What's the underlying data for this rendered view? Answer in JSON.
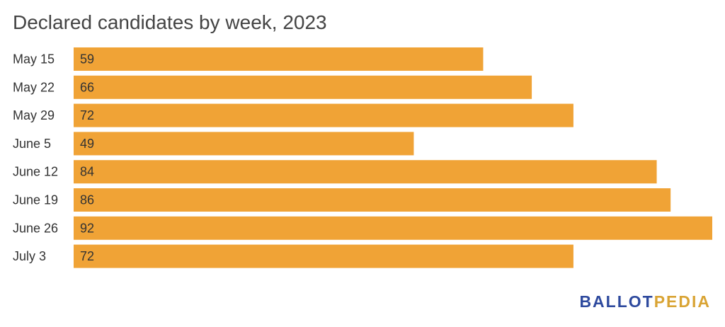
{
  "chart_data": {
    "type": "bar",
    "orientation": "horizontal",
    "title": "Declared candidates by week, 2023",
    "xlabel": "",
    "ylabel": "",
    "categories": [
      "May 15",
      "May 22",
      "May 29",
      "June 5",
      "June 12",
      "June 19",
      "June 26",
      "July 3"
    ],
    "values": [
      59,
      66,
      72,
      49,
      84,
      86,
      92,
      72
    ],
    "xlim": [
      0,
      92
    ],
    "data_labels": true,
    "grid": false,
    "legend": "none",
    "bar_color": "#f0a336",
    "label_color": "#333333"
  },
  "logo": {
    "part1": "BALLOT",
    "part2": "PEDIA"
  },
  "colors": {
    "logo_primary": "#2e4a9e",
    "logo_accent": "#d9a434"
  }
}
